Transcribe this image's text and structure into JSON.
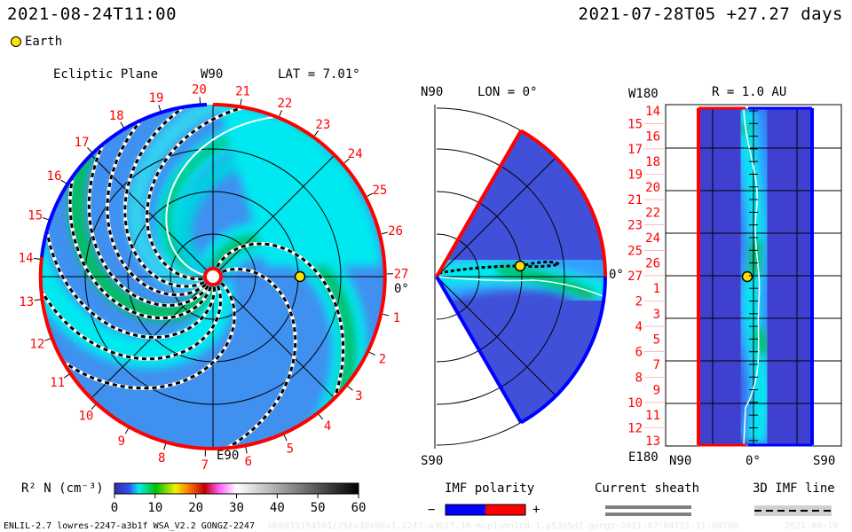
{
  "header": {
    "current_time": "2021-08-24T11:00",
    "run_info": "2021-07-28T05 +27.27 days"
  },
  "legend_top": {
    "earth_label": "Earth"
  },
  "ecliptic": {
    "title": "Ecliptic Plane",
    "top_label": "W90",
    "bottom_label": "E90",
    "angle_label": "0°",
    "lat_label": "LAT = 7.01°",
    "day_labels": [
      "1",
      "2",
      "3",
      "4",
      "5",
      "6",
      "7",
      "8",
      "9",
      "10",
      "11",
      "12",
      "13",
      "14",
      "15",
      "16",
      "17",
      "18",
      "19",
      "20",
      "21",
      "22",
      "23",
      "24",
      "25",
      "26",
      "27"
    ]
  },
  "meridional": {
    "top_label": "N90",
    "bottom_label": "S90",
    "lon_label": "LON = 0°",
    "angle_label": "0°"
  },
  "timeline": {
    "title": "R = 1.0 AU",
    "top_label": "W180",
    "bottom_label": "E180",
    "x_labels": [
      "N90",
      "0°",
      "S90"
    ],
    "day_labels": [
      "14",
      "15",
      "16",
      "17",
      "18",
      "19",
      "20",
      "21",
      "22",
      "23",
      "24",
      "25",
      "26",
      "27",
      "1",
      "2",
      "3",
      "4",
      "5",
      "6",
      "7",
      "8",
      "9",
      "10",
      "11",
      "12",
      "13"
    ]
  },
  "colorbar": {
    "label": "R² N (cm⁻³)",
    "ticks": [
      "0",
      "10",
      "20",
      "30",
      "40",
      "50",
      "60"
    ]
  },
  "imf_legend": {
    "title": "IMF polarity",
    "minus": "−",
    "plus": "+",
    "negative_color": "#0000ff",
    "positive_color": "#ff0000"
  },
  "sheath_legend": {
    "title": "Current sheath"
  },
  "imf_line_legend": {
    "title": "3D IMF line"
  },
  "footer": {
    "model": "ENLIL-2.7 lowres-2247-a3b1f WSA_V2.2 GONGZ-2247",
    "run_id": "UE0819154501/256x30x90x1.2247-a3b1f.16-mcp1umn1cd-1.g53q5d2.gongz-2021:07:04T21:11:00T00",
    "date": "2021-08-19"
  }
}
